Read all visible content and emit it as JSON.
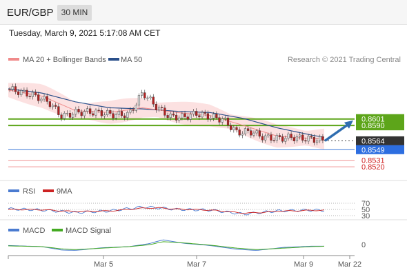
{
  "header": {
    "symbol": "EUR/GBP",
    "timeframe": "30 MIN",
    "datetime": "Tuesday, March 9, 2021 5:17:08 AM CET"
  },
  "chart_data": {
    "type": "line",
    "subtype": "candlestick",
    "price_panel": {
      "legend": [
        {
          "label": "MA 20 + Bollinger Bands",
          "color": "#f08a8a"
        },
        {
          "label": "MA 50",
          "color": "#2a4f8a"
        }
      ],
      "credit": "Research © 2021 Trading Central",
      "y_range": [
        0.8505,
        0.868
      ],
      "series": [
        {
          "name": "Price",
          "x": [
            0,
            0.04,
            0.08,
            0.12,
            0.16,
            0.2,
            0.24,
            0.28,
            0.32,
            0.36,
            0.4,
            0.44,
            0.48,
            0.52,
            0.56,
            0.6,
            0.64,
            0.68,
            0.72,
            0.76,
            0.8,
            0.84,
            0.88,
            0.92,
            0.94
          ],
          "y": [
            0.8652,
            0.8646,
            0.864,
            0.863,
            0.8605,
            0.8612,
            0.8613,
            0.8611,
            0.8608,
            0.8609,
            0.8646,
            0.8622,
            0.8605,
            0.8604,
            0.861,
            0.8605,
            0.86,
            0.8578,
            0.858,
            0.857,
            0.8568,
            0.857,
            0.8568,
            0.8566,
            0.8564
          ]
        },
        {
          "name": "MA 50",
          "x": [
            0,
            0.1,
            0.2,
            0.3,
            0.4,
            0.5,
            0.6,
            0.7,
            0.8,
            0.9,
            0.94
          ],
          "y": [
            0.8652,
            0.8645,
            0.863,
            0.862,
            0.8618,
            0.8614,
            0.8612,
            0.8602,
            0.8586,
            0.8574,
            0.857
          ]
        },
        {
          "name": "MA 20",
          "x": [
            0,
            0.1,
            0.2,
            0.3,
            0.4,
            0.5,
            0.6,
            0.7,
            0.8,
            0.9,
            0.94
          ],
          "y": [
            0.865,
            0.864,
            0.8615,
            0.8612,
            0.862,
            0.8612,
            0.8607,
            0.859,
            0.8572,
            0.8568,
            0.8567
          ]
        }
      ],
      "levels": [
        {
          "label": "0.8601",
          "value": 0.8601,
          "kind": "resistance"
        },
        {
          "label": "0.8590",
          "value": 0.859,
          "kind": "resistance"
        },
        {
          "label": "0.8564",
          "value": 0.8564,
          "kind": "last_price"
        },
        {
          "label": "0.8549",
          "value": 0.8549,
          "kind": "pivot"
        },
        {
          "label": "0.8531",
          "value": 0.8531,
          "kind": "support"
        },
        {
          "label": "0.8520",
          "value": 0.852,
          "kind": "support"
        }
      ],
      "forecast_arrow": {
        "from": 0.8564,
        "to": 0.8601
      }
    },
    "rsi_panel": {
      "legend": [
        {
          "label": "RSI",
          "color": "#4a7bd0"
        },
        {
          "label": "9MA",
          "color": "#cc2222"
        }
      ],
      "y_ticks": [
        "70",
        "50",
        "30"
      ],
      "series": [
        {
          "name": "RSI",
          "x": [
            0,
            0.1,
            0.2,
            0.3,
            0.4,
            0.45,
            0.5,
            0.6,
            0.7,
            0.75,
            0.8,
            0.9,
            0.94
          ],
          "y": [
            52,
            48,
            40,
            45,
            58,
            55,
            50,
            48,
            35,
            40,
            45,
            48,
            47
          ]
        },
        {
          "name": "9MA",
          "x": [
            0,
            0.1,
            0.2,
            0.3,
            0.4,
            0.45,
            0.5,
            0.6,
            0.7,
            0.75,
            0.8,
            0.9,
            0.94
          ],
          "y": [
            50,
            49,
            43,
            45,
            54,
            55,
            51,
            48,
            38,
            40,
            44,
            47,
            47
          ]
        }
      ]
    },
    "macd_panel": {
      "legend": [
        {
          "label": "MACD",
          "color": "#4a7bd0"
        },
        {
          "label": "MACD Signal",
          "color": "#44aa22"
        }
      ],
      "y_ticks": [
        "0"
      ],
      "series": [
        {
          "name": "MACD",
          "x": [
            0,
            0.1,
            0.16,
            0.2,
            0.28,
            0.36,
            0.42,
            0.46,
            0.52,
            0.6,
            0.68,
            0.74,
            0.82,
            0.9,
            0.94
          ],
          "y": [
            0.3,
            0,
            -0.9,
            -1.0,
            -0.3,
            0,
            0.8,
            1.8,
            0.9,
            0.3,
            -0.7,
            -1.0,
            -0.2,
            0.1,
            0.1
          ]
        },
        {
          "name": "MACD Signal",
          "x": [
            0,
            0.1,
            0.16,
            0.2,
            0.28,
            0.36,
            0.42,
            0.46,
            0.52,
            0.6,
            0.68,
            0.74,
            0.82,
            0.9,
            0.94
          ],
          "y": [
            0.2,
            0,
            -0.6,
            -0.8,
            -0.4,
            0,
            0.5,
            1.3,
            1.0,
            0.4,
            -0.4,
            -0.8,
            -0.4,
            0,
            0.1
          ]
        }
      ]
    },
    "x_axis": {
      "ticks": [
        "Mar 5",
        "Mar 7",
        "Mar 9",
        "Mar 22"
      ]
    }
  }
}
